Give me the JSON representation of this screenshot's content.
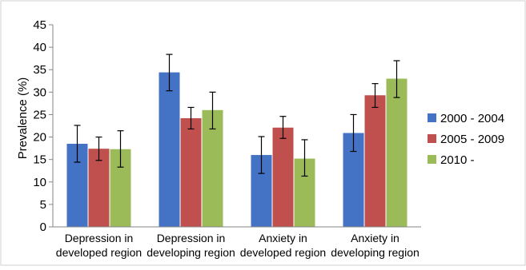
{
  "chart_data": {
    "type": "bar",
    "title": "",
    "xlabel": "",
    "ylabel": "Prevalence (%)",
    "ylim": [
      0,
      45
    ],
    "yticks": [
      0,
      5,
      10,
      15,
      20,
      25,
      30,
      35,
      40,
      45
    ],
    "grid": false,
    "legend_position": "right",
    "error_bars": true,
    "categories": [
      [
        "Depression in",
        "developed region"
      ],
      [
        "Depression in",
        "developing region"
      ],
      [
        "Anxiety in",
        "developed region"
      ],
      [
        "Anxiety in",
        "developing region"
      ]
    ],
    "series": [
      {
        "name": "2000 - 2004",
        "color": "#4472C4",
        "values": [
          18.5,
          34.4,
          16.0,
          20.9
        ],
        "error_low": [
          14.4,
          30.3,
          11.9,
          16.8
        ],
        "error_high": [
          22.6,
          38.4,
          20.1,
          25.0
        ]
      },
      {
        "name": "2005 - 2009",
        "color": "#C0504D",
        "values": [
          17.4,
          24.2,
          22.1,
          29.3
        ],
        "error_low": [
          14.8,
          21.8,
          19.7,
          26.6
        ],
        "error_high": [
          20.0,
          26.6,
          24.6,
          31.9
        ]
      },
      {
        "name": "2010 -",
        "color": "#9BBB59",
        "values": [
          17.3,
          26.0,
          15.2,
          33.0
        ],
        "error_low": [
          13.3,
          21.8,
          11.3,
          28.8
        ],
        "error_high": [
          21.4,
          30.0,
          19.4,
          37.0
        ]
      }
    ]
  }
}
